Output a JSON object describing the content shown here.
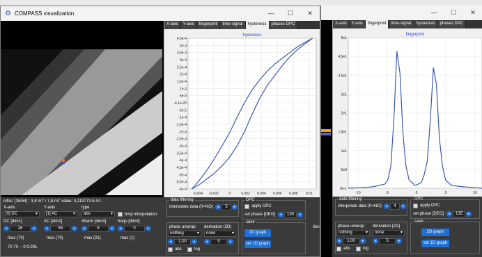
{
  "w1": {
    "title": "COMPASS visualization",
    "tabs": [
      "X-axis",
      "Y-axis",
      "fingerprint",
      "time-signal",
      "hysteresis",
      "phases DPC"
    ],
    "active_tab": 4,
    "plot_title": "hysteresis",
    "y_ticks": [
      "4,5e-4",
      "4e-4",
      "3,5e-4",
      "3e-4",
      "2,5e-4",
      "2e-4",
      "1,5e-4",
      "1e-4",
      "5e-5",
      "-4,1e-20",
      "-5e-5",
      "-1e-4",
      "-1,5e-4",
      "-2e-4",
      "-2,5e-4",
      "-3e-4",
      "-3,5e-4",
      "-4e-4",
      "-4,5e-4",
      "-5e-4",
      "-5,5e-4",
      "-6e-4"
    ],
    "x_ticks": [
      "-0,004",
      "-0,002",
      "0",
      "0,002",
      "0,004",
      "0,006",
      "0,008",
      "0,01"
    ],
    "info": "infos: [26/54] : 3,8 mT \\ 7,8 mT value: 4,113773 E-51",
    "xaxis_label": "X-axis",
    "xaxis_value": "[0] DC",
    "yaxis_label": "Y-axis",
    "yaxis_value": "[1] AC",
    "type_label": "type",
    "type_value": "abs",
    "bmp_label": "bmp interpolation",
    "dc_label": "DC [dim1]",
    "dc_value": "26",
    "ac_label": "AC [dim2]",
    "ac_value": "55",
    "harm_label": "#harm [dim3]",
    "harm_value": "5",
    "frequ_label": "frequ [dim4]",
    "frequ_value": "0",
    "max1": "max (70)",
    "max2": "max (70)",
    "max3": "max (21)",
    "max4": "max (1)",
    "coords": "70 70 -- 0 0,001",
    "data_filtering": "data filtering",
    "interp_label": "interpolate data (0=NO)",
    "interp_value": "5",
    "dpc_label": "DPC",
    "apply_dpc": "apply DPC",
    "set_phase_label": "set phase [DEG]",
    "set_phase_value": "135",
    "phase_unwrap_label": "phase unwrap",
    "phase_unwrap_value": "nothing",
    "deriv_label": "derivation (2D)",
    "deriv_value": "none",
    "scale_value": "1,00",
    "deriv_num": "5",
    "abs_label": "abs",
    "log_label": "log",
    "save_label": "save",
    "btn_2d": "2D graph",
    "btn_1d": "set 1D graph",
    "cut_text": "tion"
  },
  "w2": {
    "tabs": [
      "X-axis",
      "Y-axis",
      "fingerprint",
      "time-signal",
      "hysteresis",
      "phases DPC"
    ],
    "active_tab": 2,
    "plot_title": "fingerprint",
    "y_ticks": [
      "5e1",
      "4,5e1",
      "3,5e1",
      "3e1",
      "2e1",
      "1,5e1",
      "1e1",
      "5e0",
      "0e-1"
    ],
    "x_ticks": [
      "-10",
      "-5",
      "0",
      "5",
      "10"
    ],
    "data_filtering": "data filtering",
    "interp_label": "interpolate data (0=NO)",
    "interp_value": "4",
    "dpc_label": "DPC",
    "apply_dpc": "apply DPC",
    "set_phase_label": "set phase [DEG]",
    "set_phase_value": "135",
    "phase_unwrap_label": "phase unwrap",
    "phase_unwrap_value": "nothing",
    "deriv_label": "derivation (2D)",
    "deriv_value": "none",
    "scale_value": "1,00",
    "deriv_num": "5",
    "abs_label": "abs",
    "log_label": "log",
    "save_label": "save",
    "btn_2d": "2D graph",
    "btn_1d": "set 1D graph"
  },
  "chart_data": [
    {
      "type": "line",
      "title": "hysteresis",
      "xlim": [
        -0.0055,
        0.0115
      ],
      "ylim": [
        -0.0006,
        0.00045
      ],
      "series": [
        {
          "x": [
            -0.005,
            -0.004,
            -0.003,
            -0.002,
            -0.001,
            0,
            0.001,
            0.002,
            0.003,
            0.004,
            0.005,
            0.006,
            0.007,
            0.008,
            0.009,
            0.01,
            0.011
          ],
          "y": [
            -0.0006,
            -0.00054,
            -0.00047,
            -0.00039,
            -0.0003,
            -0.00021,
            -0.0001,
            2e-06,
            9e-05,
            0.00016,
            0.00022,
            0.00027,
            0.00031,
            0.00035,
            0.00039,
            0.00042,
            0.00045
          ]
        },
        {
          "x": [
            -0.005,
            -0.004,
            -0.003,
            -0.002,
            -0.001,
            0,
            0.001,
            0.002,
            0.003,
            0.004,
            0.005,
            0.006,
            0.007,
            0.008,
            0.009,
            0.01,
            0.011
          ],
          "y": [
            -0.0006,
            -0.00057,
            -0.00053,
            -0.00049,
            -0.00044,
            -0.00038,
            -0.0003,
            -0.0002,
            -8e-05,
            3e-05,
            0.00012,
            0.00019,
            0.00026,
            0.00032,
            0.00037,
            0.00041,
            0.00045
          ]
        }
      ]
    },
    {
      "type": "line",
      "title": "fingerprint",
      "xlim": [
        -11,
        11
      ],
      "ylim": [
        0,
        55
      ],
      "series": [
        {
          "x": [
            -11,
            -9,
            -7,
            -5,
            -4.5,
            -4,
            -3.5,
            -3,
            -2.5,
            -2,
            -1.5,
            -1,
            0,
            1,
            1.5,
            2,
            2.5,
            3,
            3.5,
            4,
            4.5,
            5,
            6,
            8,
            10,
            11
          ],
          "y": [
            0,
            0.2,
            0.5,
            1.5,
            3,
            8,
            25,
            50,
            42,
            20,
            8,
            3,
            1,
            2,
            5,
            10,
            25,
            44,
            38,
            18,
            8,
            3,
            1,
            0.5,
            0.2,
            0
          ]
        }
      ]
    }
  ]
}
